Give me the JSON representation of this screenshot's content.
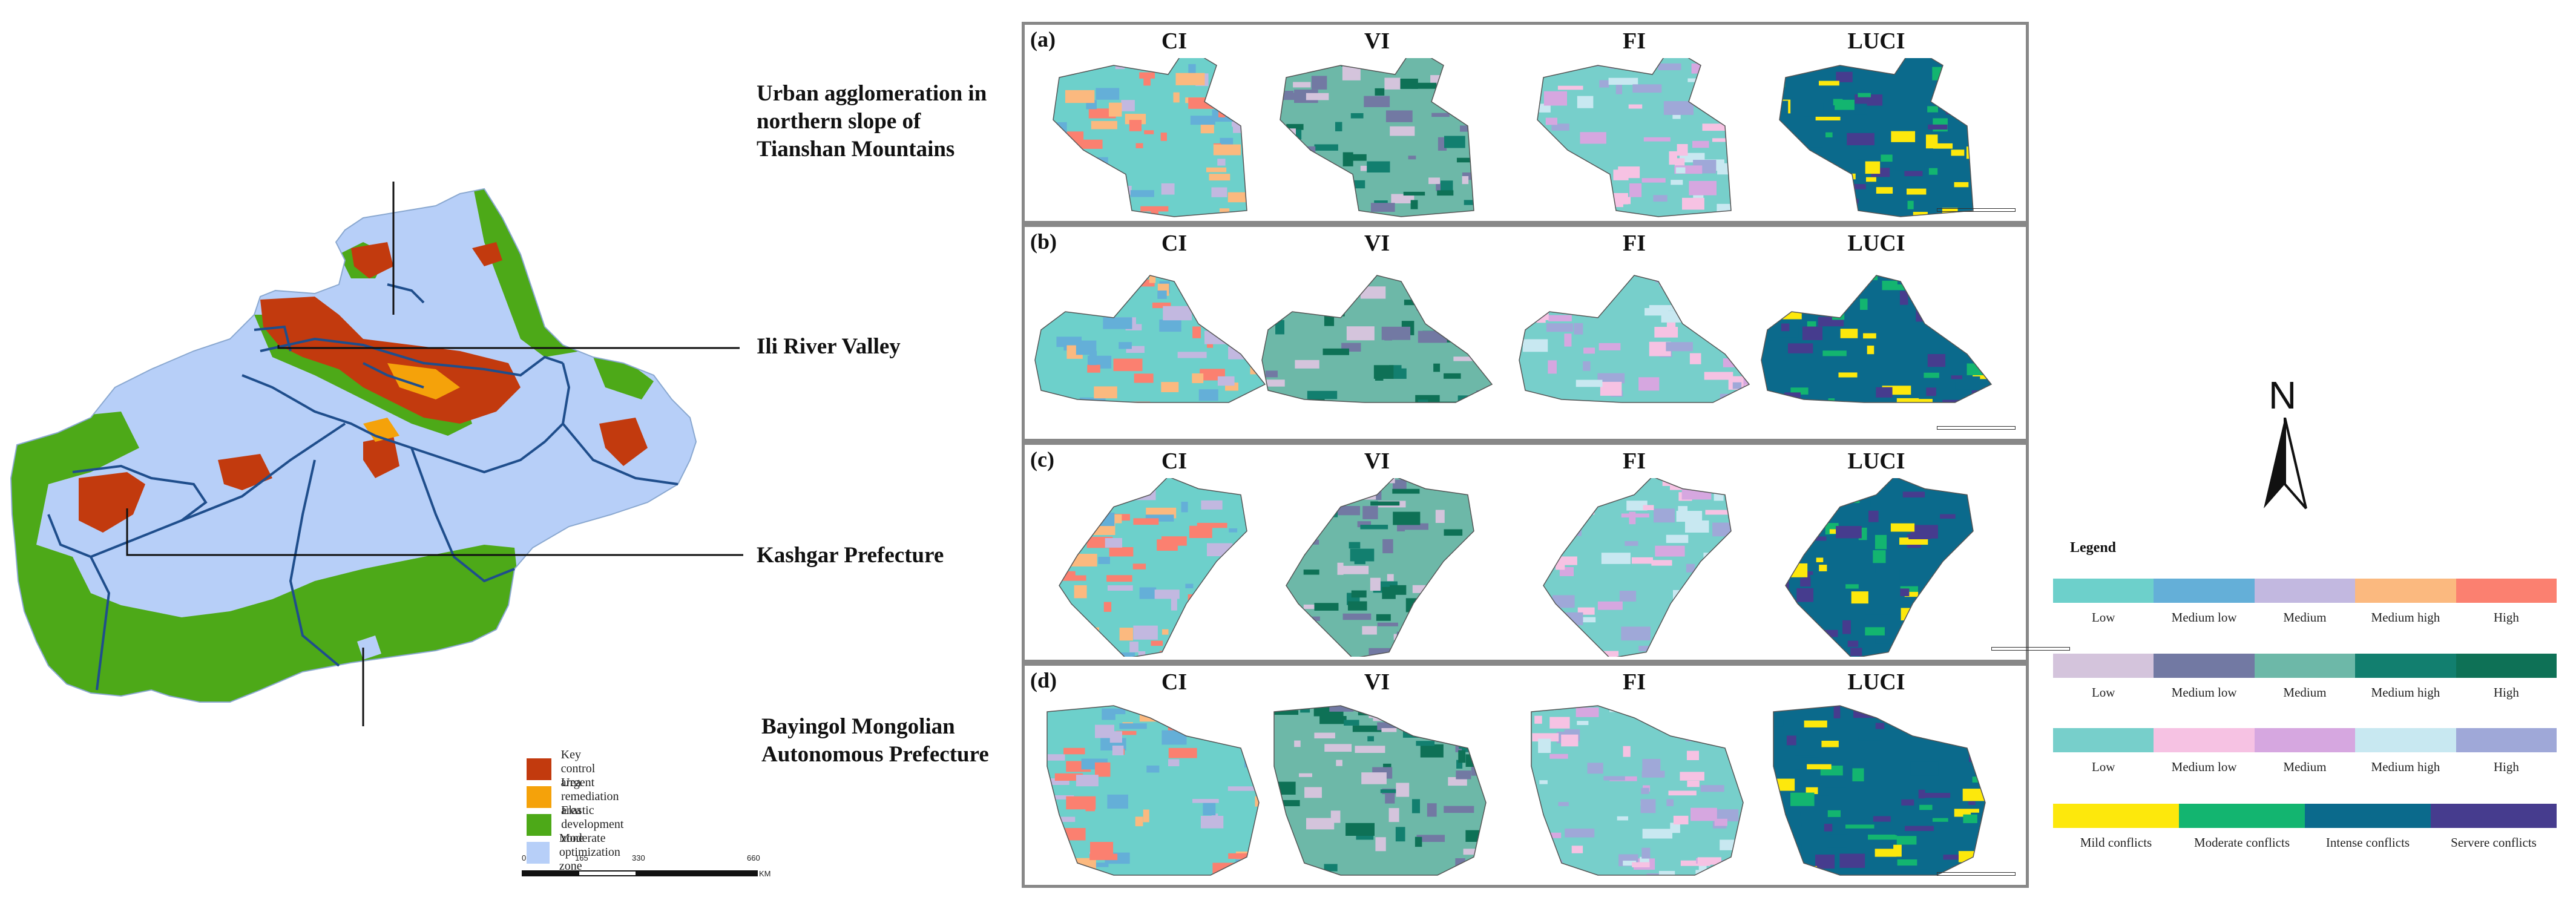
{
  "regions": {
    "urban": "Urban agglomeration in\nnorthern slope of\nTianshan Mountains",
    "ili": "Ili River Valley",
    "kashgar": "Kashgar Prefecture",
    "bayingol": "Bayingol Mongolian\nAutonomous Prefecture"
  },
  "map_legend": [
    {
      "label": "Key control area",
      "color": "#c23a0e"
    },
    {
      "label": "Urgent remediation area",
      "color": "#f5a20a"
    },
    {
      "label": "Elastic development zone",
      "color": "#4da918"
    },
    {
      "label": "Moderate optimization zone",
      "color": "#b7cff8"
    }
  ],
  "scale": {
    "ticks": [
      "0",
      "165",
      "330",
      "660"
    ],
    "unit": "KM"
  },
  "panels": [
    {
      "tag": "(a)"
    },
    {
      "tag": "(b)"
    },
    {
      "tag": "(c)"
    },
    {
      "tag": "(d)"
    }
  ],
  "index_titles": [
    "CI",
    "VI",
    "FI",
    "LUCI"
  ],
  "north": "N",
  "legend": {
    "title": "Legend",
    "bars": [
      {
        "colors": [
          "#6dd0cb",
          "#64afd8",
          "#c2b8e0",
          "#fbb97f",
          "#fb8070"
        ],
        "labels": [
          "Low",
          "Medium low",
          "Medium",
          "Medium high",
          "High"
        ]
      },
      {
        "colors": [
          "#d4c4dc",
          "#7279a3",
          "#6db8a8",
          "#127f6f",
          "#0e7156"
        ],
        "labels": [
          "Low",
          "Medium low",
          "Medium",
          "Medium high",
          "High"
        ]
      },
      {
        "colors": [
          "#77cfcb",
          "#f6c2e3",
          "#d6a7e0",
          "#c8e8f1",
          "#9fa8d8"
        ],
        "labels": [
          "Low",
          "Medium low",
          "Medium",
          "Medium high",
          "High"
        ]
      },
      {
        "colors": [
          "#fde80c",
          "#13b570",
          "#0b6a8c",
          "#463c8e"
        ],
        "labels": [
          "Mild conflicts",
          "Moderate conflicts",
          "Intense conflicts",
          "Servere conflicts"
        ]
      }
    ]
  }
}
